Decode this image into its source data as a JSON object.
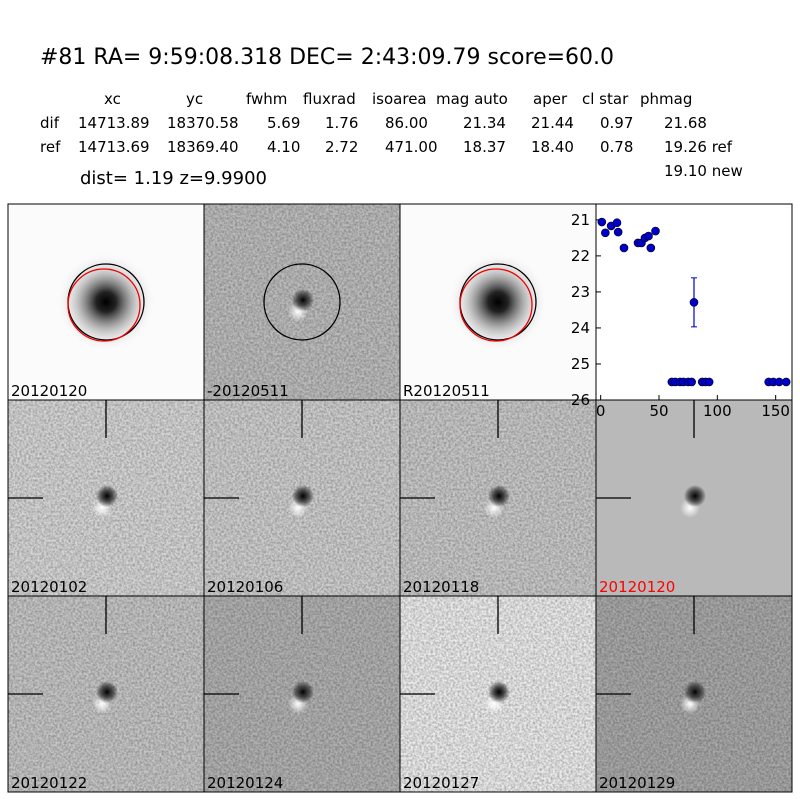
{
  "header": {
    "title": "#81   RA= 9:59:08.318 DEC= 2:43:09.79      score=60.0",
    "table": {
      "columns": [
        "xc",
        "yc",
        "fwhm",
        "fluxrad",
        "isoarea",
        "mag auto",
        "aper",
        "cl star",
        "phmag"
      ],
      "rows": [
        [
          "dif",
          "14713.89",
          "18370.58",
          "5.69",
          "1.76",
          "86.00",
          "21.34",
          "21.44",
          "0.97",
          "21.68"
        ],
        [
          "ref",
          "14713.69",
          "18369.40",
          "4.10",
          "2.72",
          "471.00",
          "18.37",
          "18.40",
          "0.78",
          "19.26 ref"
        ]
      ],
      "extra": "19.10 new"
    },
    "dist": "dist=  1.19      z=9.9900"
  },
  "panels": [
    {
      "label": "20120120"
    },
    {
      "label": "-20120511"
    },
    {
      "label": "R20120511"
    },
    {
      "label": "20120102"
    },
    {
      "label": "20120106"
    },
    {
      "label": "20120118"
    },
    {
      "label": "20120120"
    },
    {
      "label": "20120122"
    },
    {
      "label": "20120124"
    },
    {
      "label": "20120127"
    },
    {
      "label": "20120129"
    }
  ],
  "chart_data": {
    "type": "scatter",
    "x": [
      1,
      4,
      9,
      14,
      15,
      20,
      32,
      35,
      38,
      41,
      43,
      47,
      80,
      61,
      64,
      68,
      71,
      75,
      78,
      87,
      90,
      93,
      144,
      148,
      153,
      159
    ],
    "series": [
      {
        "color": "#0000cc",
        "values": [
          21.06,
          21.36,
          21.17,
          21.08,
          21.34,
          21.78,
          21.64,
          21.64,
          21.5,
          21.45,
          21.78,
          21.31,
          23.29,
          25.5,
          25.5,
          25.5,
          25.5,
          25.5,
          25.5,
          25.5,
          25.5,
          25.5,
          25.5,
          25.5,
          25.5,
          25.5
        ],
        "errors": [
          0.04,
          0.04,
          0.04,
          0.04,
          0.04,
          0.06,
          0.05,
          0.05,
          0.05,
          0.05,
          0.07,
          0.04,
          0.68,
          0,
          0,
          0,
          0,
          0,
          0,
          0,
          0,
          0,
          0,
          0,
          0,
          0
        ]
      }
    ],
    "xlim": [
      -4,
      164
    ],
    "xticks": [
      0,
      50,
      100,
      150
    ],
    "ylim": [
      26,
      20.56
    ],
    "yticks": [
      21,
      22,
      23,
      24,
      25,
      26
    ]
  }
}
